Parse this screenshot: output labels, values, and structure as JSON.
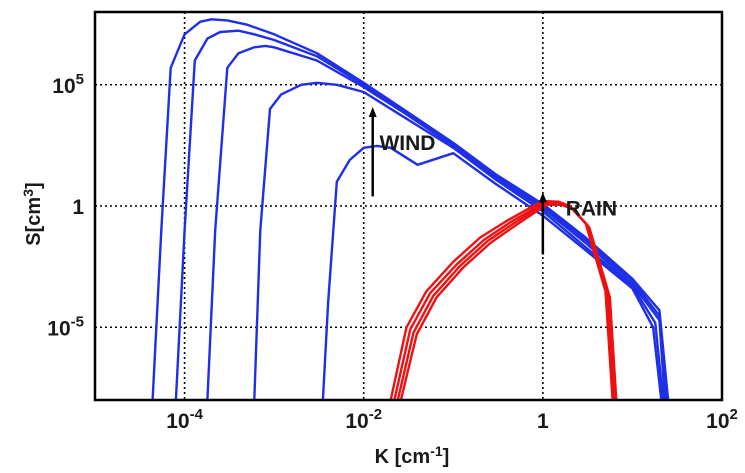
{
  "chart_data": {
    "type": "line",
    "xlabel": "K [cm",
    "xlabel_sup": "-1",
    "xlabel_tail": "]",
    "ylabel": "S[cm",
    "ylabel_sup": "3",
    "ylabel_tail": "]",
    "x_scale": "log",
    "y_scale": "log",
    "xlim": [
      1e-05,
      100
    ],
    "ylim": [
      1e-08,
      100000000.0
    ],
    "grid": true,
    "x_ticks": [
      {
        "value": 0.0001,
        "base": "10",
        "exp": "-4"
      },
      {
        "value": 0.01,
        "base": "10",
        "exp": "-2"
      },
      {
        "value": 1,
        "base": "1",
        "exp": ""
      },
      {
        "value": 100,
        "base": "10",
        "exp": "2"
      }
    ],
    "y_ticks": [
      {
        "value": 100000,
        "base": "10",
        "exp": "5"
      },
      {
        "value": 1,
        "base": "1",
        "exp": ""
      },
      {
        "value": 1e-05,
        "base": "10",
        "exp": "-5"
      }
    ],
    "annotations": [
      {
        "text": "WIND",
        "x": 0.015,
        "y": 200,
        "arrow_x": 0.0126,
        "arrow_from": 2.5,
        "arrow_to": 10000
      },
      {
        "text": "RAIN",
        "x": 1.8,
        "y": 0.4,
        "arrow_x": 1.0,
        "arrow_from": 0.01,
        "arrow_to": 3
      }
    ],
    "series": [
      {
        "group": "wind",
        "color": "#1f2fe6",
        "points": [
          [
            4.4e-05,
            1e-08
          ],
          [
            5.5e-05,
            0.1
          ],
          [
            7e-05,
            500000
          ],
          [
            0.0001,
            12000000
          ],
          [
            0.00015,
            40000000
          ],
          [
            0.0002,
            50000000
          ],
          [
            0.0003,
            45000000
          ],
          [
            0.0005,
            30000000
          ],
          [
            0.001,
            12000000
          ],
          [
            0.003,
            2000000
          ],
          [
            0.01,
            120000
          ],
          [
            0.03,
            8000
          ],
          [
            0.1,
            400
          ],
          [
            0.3,
            20
          ],
          [
            1,
            1.2
          ],
          [
            3,
            0.05
          ],
          [
            10,
            0.001
          ],
          [
            20,
            5e-05
          ],
          [
            25,
            1e-08
          ]
        ]
      },
      {
        "group": "wind",
        "color": "#1f2fe6",
        "points": [
          [
            8e-05,
            1e-08
          ],
          [
            0.0001,
            0.1
          ],
          [
            0.00013,
            1000000
          ],
          [
            0.00018,
            8000000
          ],
          [
            0.00025,
            15000000
          ],
          [
            0.0004,
            17000000
          ],
          [
            0.0006,
            12000000
          ],
          [
            0.001,
            7000000
          ],
          [
            0.003,
            1500000
          ],
          [
            0.01,
            100000
          ],
          [
            0.03,
            7000
          ],
          [
            0.1,
            350
          ],
          [
            0.3,
            18
          ],
          [
            1,
            1
          ],
          [
            3,
            0.04
          ],
          [
            10,
            0.0008
          ],
          [
            20,
            3e-05
          ],
          [
            24,
            1e-08
          ]
        ]
      },
      {
        "group": "wind",
        "color": "#1f2fe6",
        "points": [
          [
            0.00018,
            1e-08
          ],
          [
            0.00022,
            0.1
          ],
          [
            0.0003,
            500000
          ],
          [
            0.0004,
            2000000
          ],
          [
            0.0006,
            3500000
          ],
          [
            0.0008,
            4000000
          ],
          [
            0.001,
            3500000
          ],
          [
            0.003,
            1000000
          ],
          [
            0.01,
            80000
          ],
          [
            0.03,
            6000
          ],
          [
            0.1,
            300
          ],
          [
            0.3,
            15
          ],
          [
            1,
            0.8
          ],
          [
            3,
            0.03
          ],
          [
            10,
            0.0006
          ],
          [
            20,
            2e-05
          ],
          [
            23,
            1e-08
          ]
        ]
      },
      {
        "group": "wind",
        "color": "#1f2fe6",
        "points": [
          [
            0.0006,
            1e-08
          ],
          [
            0.0007,
            0.1
          ],
          [
            0.0009,
            10000
          ],
          [
            0.0012,
            40000
          ],
          [
            0.002,
            100000
          ],
          [
            0.003,
            120000
          ],
          [
            0.005,
            100000
          ],
          [
            0.01,
            50000
          ],
          [
            0.03,
            4000
          ],
          [
            0.1,
            250
          ],
          [
            0.3,
            12
          ],
          [
            1,
            0.6
          ],
          [
            3,
            0.02
          ],
          [
            10,
            0.0005
          ],
          [
            18,
            1.5e-05
          ],
          [
            22,
            1e-08
          ]
        ]
      },
      {
        "group": "wind",
        "color": "#1f2fe6",
        "points": [
          [
            0.0035,
            1e-08
          ],
          [
            0.004,
            0.0001
          ],
          [
            0.005,
            10
          ],
          [
            0.007,
            80
          ],
          [
            0.01,
            250
          ],
          [
            0.014,
            300
          ],
          [
            0.02,
            250
          ],
          [
            0.04,
            50
          ],
          [
            0.1,
            150
          ],
          [
            0.3,
            8
          ],
          [
            1,
            0.4
          ],
          [
            3,
            0.015
          ],
          [
            10,
            0.0004
          ],
          [
            17,
            1e-05
          ],
          [
            21,
            1e-08
          ]
        ]
      },
      {
        "group": "rain",
        "color": "#ee1111",
        "points": [
          [
            0.02,
            1e-08
          ],
          [
            0.03,
            1e-05
          ],
          [
            0.05,
            0.0003
          ],
          [
            0.1,
            0.005
          ],
          [
            0.2,
            0.05
          ],
          [
            0.4,
            0.25
          ],
          [
            0.7,
            0.8
          ],
          [
            1,
            1.6
          ],
          [
            1.5,
            1.5
          ],
          [
            2,
            1
          ],
          [
            3,
            0.2
          ],
          [
            5,
            0.0003
          ],
          [
            6,
            1e-08
          ]
        ]
      },
      {
        "group": "rain",
        "color": "#ee1111",
        "points": [
          [
            0.022,
            1e-08
          ],
          [
            0.033,
            8e-06
          ],
          [
            0.055,
            0.00025
          ],
          [
            0.11,
            0.004
          ],
          [
            0.22,
            0.04
          ],
          [
            0.44,
            0.22
          ],
          [
            0.75,
            0.7
          ],
          [
            1.05,
            1.4
          ],
          [
            1.55,
            1.35
          ],
          [
            2.05,
            0.9
          ],
          [
            3.1,
            0.17
          ],
          [
            5.2,
            0.00025
          ],
          [
            6.2,
            1e-08
          ]
        ]
      },
      {
        "group": "rain",
        "color": "#ee1111",
        "points": [
          [
            0.024,
            1e-08
          ],
          [
            0.036,
            6e-06
          ],
          [
            0.06,
            0.0002
          ],
          [
            0.12,
            0.0035
          ],
          [
            0.24,
            0.035
          ],
          [
            0.48,
            0.2
          ],
          [
            0.8,
            0.65
          ],
          [
            1.1,
            1.25
          ],
          [
            1.6,
            1.2
          ],
          [
            2.1,
            0.8
          ],
          [
            3.2,
            0.15
          ],
          [
            5.4,
            0.0002
          ],
          [
            6.4,
            1e-08
          ]
        ]
      },
      {
        "group": "rain",
        "color": "#ee1111",
        "points": [
          [
            0.026,
            1e-08
          ],
          [
            0.039,
            5e-06
          ],
          [
            0.065,
            0.00017
          ],
          [
            0.13,
            0.003
          ],
          [
            0.26,
            0.03
          ],
          [
            0.52,
            0.18
          ],
          [
            0.85,
            0.6
          ],
          [
            1.15,
            1.15
          ],
          [
            1.65,
            1.1
          ],
          [
            2.15,
            0.75
          ],
          [
            3.3,
            0.13
          ],
          [
            5.6,
            0.00017
          ],
          [
            6.6,
            1e-08
          ]
        ]
      }
    ]
  }
}
